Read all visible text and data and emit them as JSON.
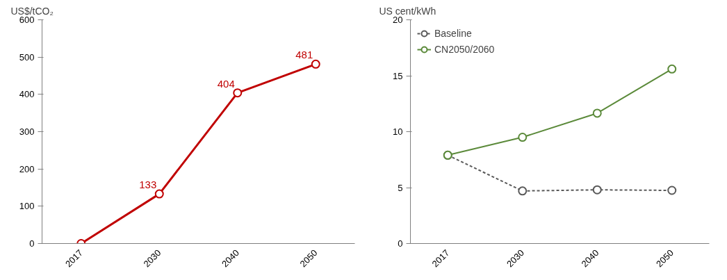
{
  "chart_data": [
    {
      "type": "line",
      "ylabel": "US$/tCO₂",
      "categories": [
        "2017",
        "2030",
        "2040",
        "2050"
      ],
      "ylim": [
        0,
        600
      ],
      "yticks": [
        0,
        100,
        200,
        300,
        400,
        500,
        600
      ],
      "grid": false,
      "marker": "circle",
      "line_style": "solid",
      "series": [
        {
          "color": "#c00000",
          "values": [
            0,
            133,
            404,
            481
          ],
          "value_labels": [
            null,
            "133",
            "404",
            "481"
          ]
        }
      ]
    },
    {
      "type": "line",
      "ylabel": "US cent/kWh",
      "categories": [
        "2017",
        "2030",
        "2040",
        "2050"
      ],
      "ylim": [
        0,
        20
      ],
      "yticks": [
        0,
        5,
        10,
        15,
        20
      ],
      "grid": false,
      "legend": "top left",
      "marker": "circle",
      "series": [
        {
          "name": "Baseline",
          "color": "#595959",
          "line_style": "dashed",
          "values": [
            7.9,
            4.7,
            4.8,
            4.75
          ]
        },
        {
          "name": "CN2050/2060",
          "color": "#5b8a3a",
          "line_style": "solid",
          "values": [
            7.9,
            9.5,
            11.65,
            15.6
          ]
        }
      ]
    }
  ]
}
